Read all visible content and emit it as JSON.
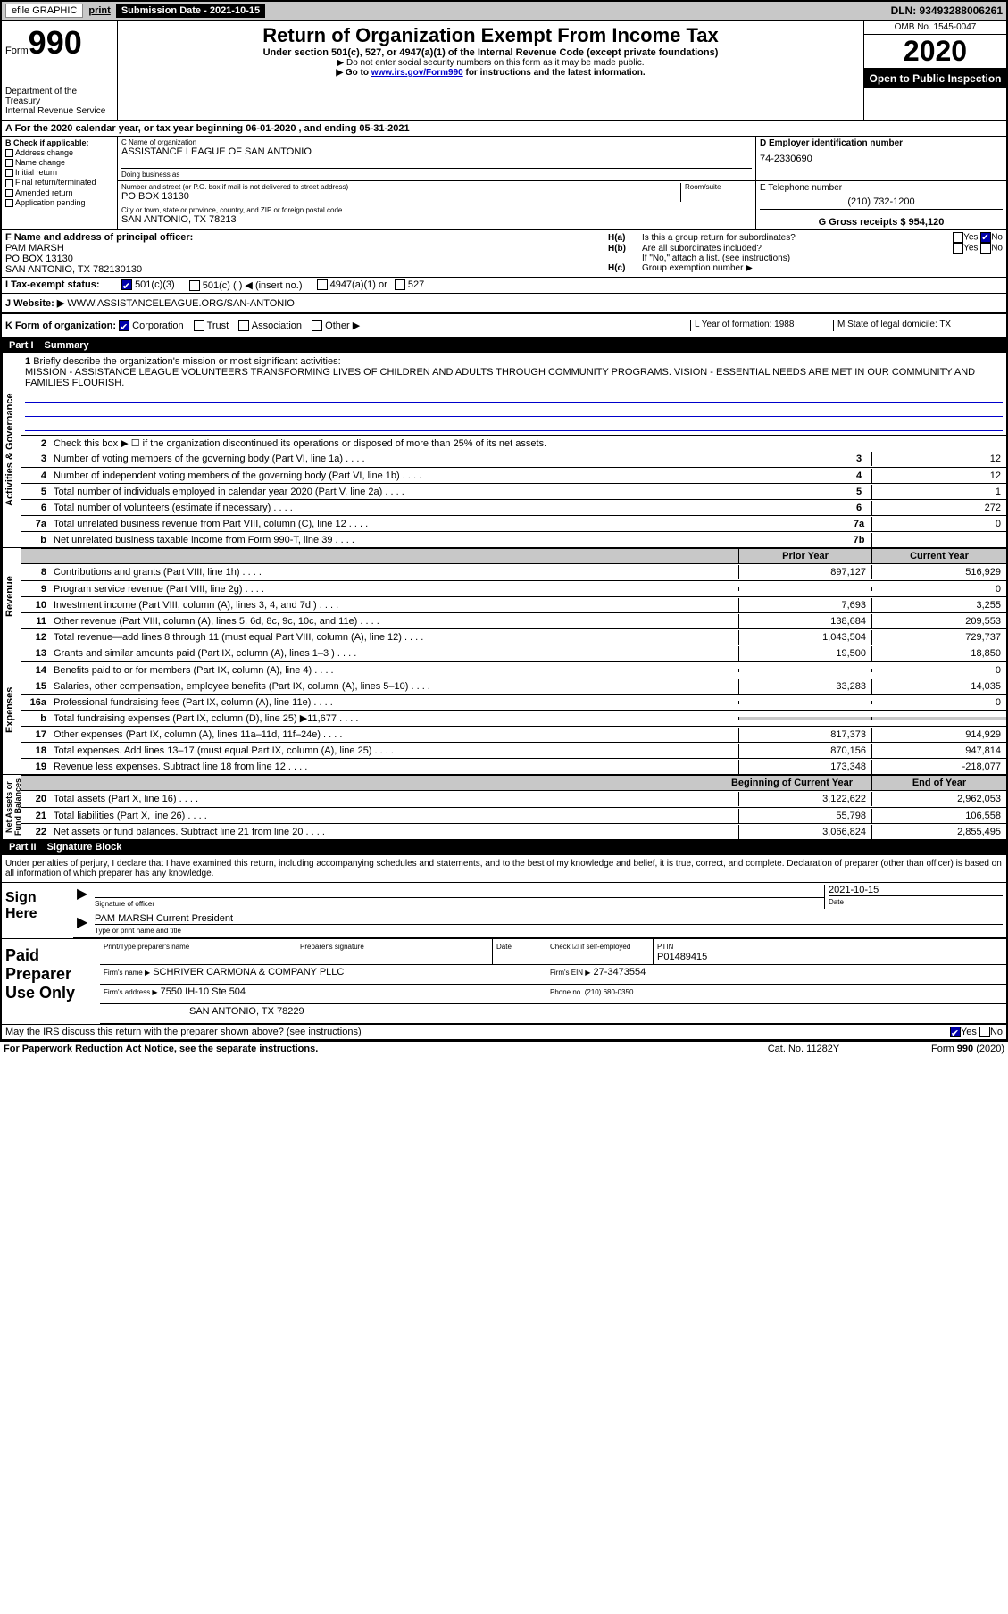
{
  "top_bar": {
    "efile": "efile GRAPHIC",
    "print": "print",
    "sub_date_label": "Submission Date - 2021-10-15",
    "dln": "DLN: 93493288006261"
  },
  "header": {
    "form_label": "Form",
    "form_num": "990",
    "dept": "Department of the Treasury\nInternal Revenue Service",
    "title": "Return of Organization Exempt From Income Tax",
    "sub1": "Under section 501(c), 527, or 4947(a)(1) of the Internal Revenue Code (except private foundations)",
    "sub2": "▶ Do not enter social security numbers on this form as it may be made public.",
    "sub3a": "▶ Go to ",
    "sub3_link": "www.irs.gov/Form990",
    "sub3b": " for instructions and the latest information.",
    "omb": "OMB No. 1545-0047",
    "year": "2020",
    "open": "Open to Public Inspection"
  },
  "section_a": {
    "text": "A For the 2020 calendar year, or tax year beginning 06-01-2020   , and ending 05-31-2021"
  },
  "section_b": {
    "header": "B Check if applicable:",
    "items": [
      "Address change",
      "Name change",
      "Initial return",
      "Final return/terminated",
      "Amended return",
      "Application pending"
    ]
  },
  "section_c": {
    "name_label": "C Name of organization",
    "name": "ASSISTANCE LEAGUE OF SAN ANTONIO",
    "dba_label": "Doing business as",
    "addr_label": "Number and street (or P.O. box if mail is not delivered to street address)",
    "room_label": "Room/suite",
    "addr": "PO BOX 13130",
    "city_label": "City or town, state or province, country, and ZIP or foreign postal code",
    "city": "SAN ANTONIO, TX  78213"
  },
  "section_d": {
    "label": "D Employer identification number",
    "ein": "74-2330690"
  },
  "section_e": {
    "label": "E Telephone number",
    "phone": "(210) 732-1200"
  },
  "section_g": {
    "label": "G Gross receipts $ 954,120"
  },
  "section_f": {
    "label": "F  Name and address of principal officer:",
    "name": "PAM MARSH",
    "addr1": "PO BOX 13130",
    "addr2": "SAN ANTONIO, TX  782130130"
  },
  "section_h": {
    "a_label": "H(a)",
    "a_text": "Is this a group return for subordinates?",
    "b_label": "H(b)",
    "b_text": "Are all subordinates included?",
    "note": "If \"No,\" attach a list. (see instructions)",
    "c_label": "H(c)",
    "c_text": "Group exemption number ▶"
  },
  "section_i": {
    "label": "I   Tax-exempt status:",
    "opt1": "501(c)(3)",
    "opt2": "501(c) (   ) ◀ (insert no.)",
    "opt3": "4947(a)(1) or",
    "opt4": "527"
  },
  "section_j": {
    "label": "J   Website: ▶",
    "url": "WWW.ASSISTANCELEAGUE.ORG/SAN-ANTONIO"
  },
  "section_k": {
    "label": "K Form of organization:",
    "opts": [
      "Corporation",
      "Trust",
      "Association",
      "Other ▶"
    ]
  },
  "section_l": {
    "label": "L Year of formation: 1988"
  },
  "section_m": {
    "label": "M State of legal domicile: TX"
  },
  "part1": {
    "num": "Part I",
    "title": "Summary"
  },
  "activities_label": "Activities & Governance",
  "revenue_label": "Revenue",
  "expenses_label": "Expenses",
  "netassets_label": "Net Assets or\nFund Balances",
  "line1": {
    "num": "1",
    "text": "Briefly describe the organization's mission or most significant activities:",
    "mission": "MISSION - ASSISTANCE LEAGUE VOLUNTEERS TRANSFORMING LIVES OF CHILDREN AND ADULTS THROUGH COMMUNITY PROGRAMS. VISION - ESSENTIAL NEEDS ARE MET IN OUR COMMUNITY AND FAMILIES FLOURISH."
  },
  "line2": {
    "num": "2",
    "text": "Check this box ▶ ☐  if the organization discontinued its operations or disposed of more than 25% of its net assets."
  },
  "lines_ag": [
    {
      "num": "3",
      "text": "Number of voting members of the governing body (Part VI, line 1a)",
      "box": "3",
      "val": "12"
    },
    {
      "num": "4",
      "text": "Number of independent voting members of the governing body (Part VI, line 1b)",
      "box": "4",
      "val": "12"
    },
    {
      "num": "5",
      "text": "Total number of individuals employed in calendar year 2020 (Part V, line 2a)",
      "box": "5",
      "val": "1"
    },
    {
      "num": "6",
      "text": "Total number of volunteers (estimate if necessary)",
      "box": "6",
      "val": "272"
    },
    {
      "num": "7a",
      "text": "Total unrelated business revenue from Part VIII, column (C), line 12",
      "box": "7a",
      "val": "0"
    },
    {
      "num": "b",
      "text": "Net unrelated business taxable income from Form 990-T, line 39",
      "box": "7b",
      "val": ""
    }
  ],
  "col_headers": {
    "py": "Prior Year",
    "cy": "Current Year"
  },
  "revenue_lines": [
    {
      "num": "8",
      "text": "Contributions and grants (Part VIII, line 1h)",
      "py": "897,127",
      "cy": "516,929"
    },
    {
      "num": "9",
      "text": "Program service revenue (Part VIII, line 2g)",
      "py": "",
      "cy": "0"
    },
    {
      "num": "10",
      "text": "Investment income (Part VIII, column (A), lines 3, 4, and 7d )",
      "py": "7,693",
      "cy": "3,255"
    },
    {
      "num": "11",
      "text": "Other revenue (Part VIII, column (A), lines 5, 6d, 8c, 9c, 10c, and 11e)",
      "py": "138,684",
      "cy": "209,553"
    },
    {
      "num": "12",
      "text": "Total revenue—add lines 8 through 11 (must equal Part VIII, column (A), line 12)",
      "py": "1,043,504",
      "cy": "729,737"
    }
  ],
  "expense_lines": [
    {
      "num": "13",
      "text": "Grants and similar amounts paid (Part IX, column (A), lines 1–3 )",
      "py": "19,500",
      "cy": "18,850"
    },
    {
      "num": "14",
      "text": "Benefits paid to or for members (Part IX, column (A), line 4)",
      "py": "",
      "cy": "0"
    },
    {
      "num": "15",
      "text": "Salaries, other compensation, employee benefits (Part IX, column (A), lines 5–10)",
      "py": "33,283",
      "cy": "14,035"
    },
    {
      "num": "16a",
      "text": "Professional fundraising fees (Part IX, column (A), line 11e)",
      "py": "",
      "cy": "0"
    },
    {
      "num": "b",
      "text": "Total fundraising expenses (Part IX, column (D), line 25) ▶11,677",
      "py": "grey",
      "cy": "grey"
    },
    {
      "num": "17",
      "text": "Other expenses (Part IX, column (A), lines 11a–11d, 11f–24e)",
      "py": "817,373",
      "cy": "914,929"
    },
    {
      "num": "18",
      "text": "Total expenses. Add lines 13–17 (must equal Part IX, column (A), line 25)",
      "py": "870,156",
      "cy": "947,814"
    },
    {
      "num": "19",
      "text": "Revenue less expenses. Subtract line 18 from line 12",
      "py": "173,348",
      "cy": "-218,077"
    }
  ],
  "net_headers": {
    "boy": "Beginning of Current Year",
    "eoy": "End of Year"
  },
  "net_lines": [
    {
      "num": "20",
      "text": "Total assets (Part X, line 16)",
      "py": "3,122,622",
      "cy": "2,962,053"
    },
    {
      "num": "21",
      "text": "Total liabilities (Part X, line 26)",
      "py": "55,798",
      "cy": "106,558"
    },
    {
      "num": "22",
      "text": "Net assets or fund balances. Subtract line 21 from line 20",
      "py": "3,066,824",
      "cy": "2,855,495"
    }
  ],
  "part2": {
    "num": "Part II",
    "title": "Signature Block"
  },
  "sig_decl": "Under penalties of perjury, I declare that I have examined this return, including accompanying schedules and statements, and to the best of my knowledge and belief, it is true, correct, and complete. Declaration of preparer (other than officer) is based on all information of which preparer has any knowledge.",
  "sign_here": "Sign Here",
  "sig": {
    "officer_label": "Signature of officer",
    "date_label": "Date",
    "date": "2021-10-15",
    "name": "PAM MARSH  Current President",
    "name_label": "Type or print name and title"
  },
  "paid_prep": "Paid Preparer Use Only",
  "prep": {
    "name_label": "Print/Type preparer's name",
    "sig_label": "Preparer's signature",
    "date_label": "Date",
    "check_label": "Check ☑ if self-employed",
    "ptin_label": "PTIN",
    "ptin": "P01489415",
    "firm_label": "Firm's name    ▶",
    "firm": "SCHRIVER CARMONA & COMPANY PLLC",
    "ein_label": "Firm's EIN ▶",
    "ein": "27-3473554",
    "addr_label": "Firm's address ▶",
    "addr1": "7550 IH-10 Ste 504",
    "addr2": "SAN ANTONIO, TX  78229",
    "phone_label": "Phone no. (210) 680-0350"
  },
  "may_irs": "May the IRS discuss this return with the preparer shown above? (see instructions)",
  "footer": {
    "left": "For Paperwork Reduction Act Notice, see the separate instructions.",
    "center": "Cat. No. 11282Y",
    "right": "Form 990 (2020)"
  }
}
